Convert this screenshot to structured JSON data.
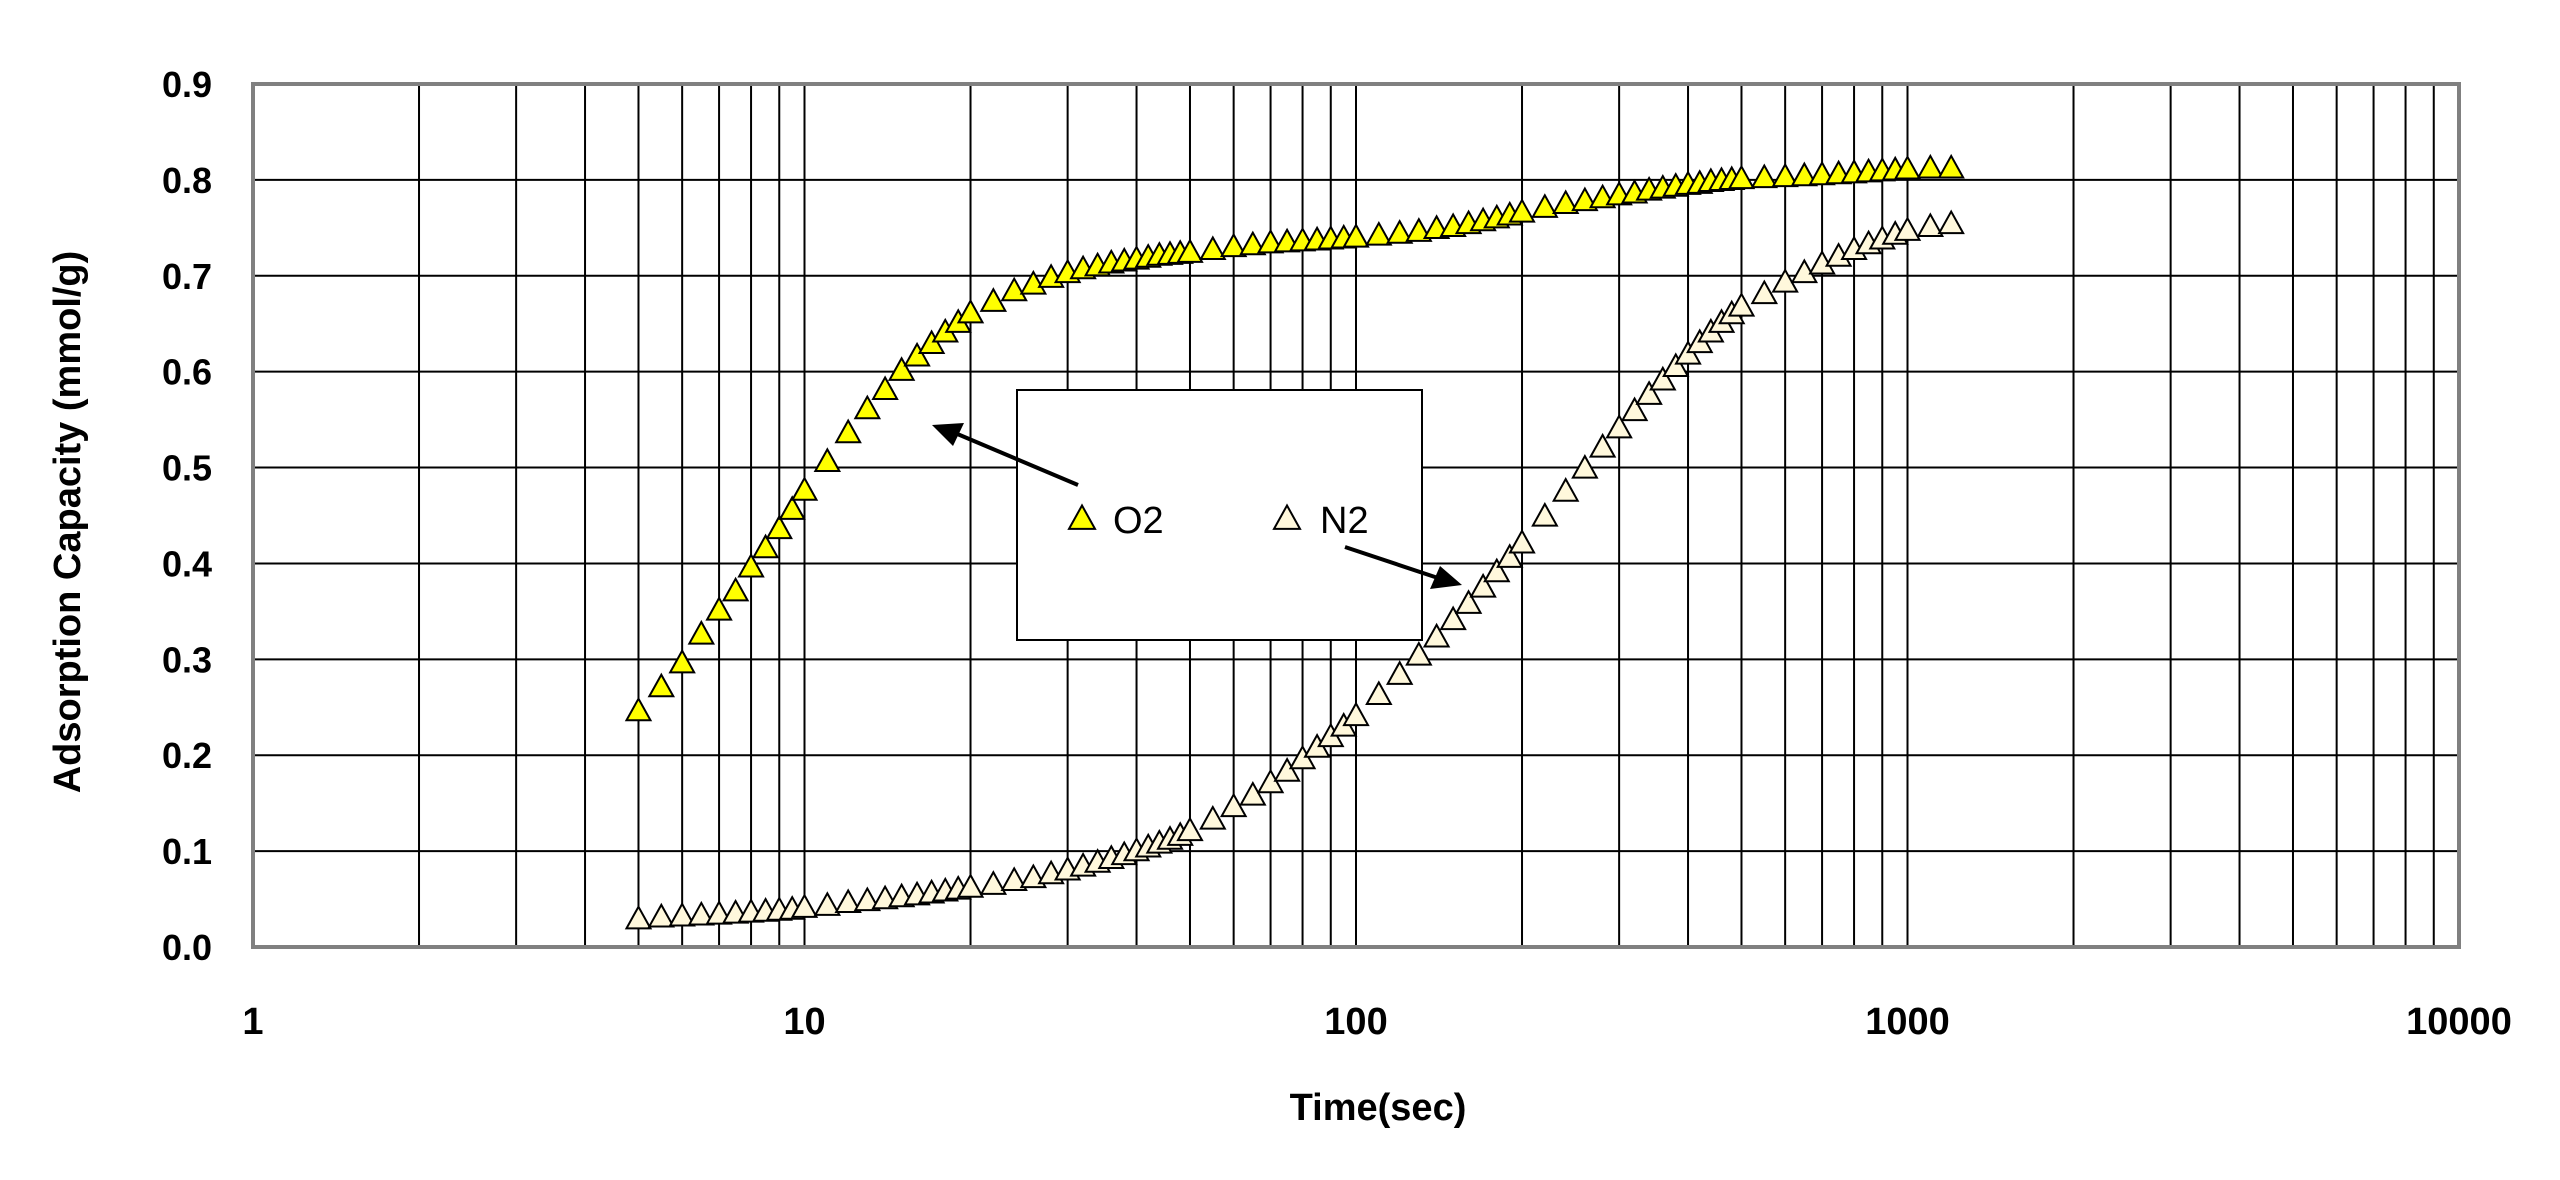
{
  "chart_data": {
    "type": "scatter",
    "title": "",
    "xlabel": "Time(sec)",
    "ylabel": "Adsorption Capacity (mmol/g)",
    "xscale": "log",
    "xlim": [
      1,
      10000
    ],
    "ylim": [
      0,
      0.9
    ],
    "grid": true,
    "x_tick_labels": [
      "1",
      "10",
      "100",
      "1000",
      "10000"
    ],
    "y_tick_labels": [
      "0.0",
      "0.1",
      "0.2",
      "0.3",
      "0.4",
      "0.5",
      "0.6",
      "0.7",
      "0.8",
      "0.9"
    ],
    "legend_position": "center",
    "series": [
      {
        "name": "O2",
        "marker": "triangle",
        "color": "#ffff00",
        "x": [
          5,
          5.5,
          6,
          6.5,
          7,
          7.5,
          8,
          8.5,
          9,
          9.5,
          10,
          11,
          12,
          13,
          14,
          15,
          16,
          17,
          18,
          19,
          20,
          22,
          24,
          26,
          28,
          30,
          32,
          34,
          36,
          38,
          40,
          42,
          44,
          46,
          48,
          50,
          55,
          60,
          65,
          70,
          75,
          80,
          85,
          90,
          95,
          100,
          110,
          120,
          130,
          140,
          150,
          160,
          170,
          180,
          190,
          200,
          220,
          240,
          260,
          280,
          300,
          320,
          340,
          360,
          380,
          400,
          420,
          440,
          460,
          480,
          500,
          550,
          600,
          650,
          700,
          750,
          800,
          850,
          900,
          950,
          1000,
          1100,
          1200
        ],
        "y": [
          0.245,
          0.27,
          0.295,
          0.325,
          0.35,
          0.37,
          0.395,
          0.415,
          0.435,
          0.455,
          0.475,
          0.505,
          0.535,
          0.56,
          0.58,
          0.6,
          0.615,
          0.628,
          0.64,
          0.65,
          0.66,
          0.672,
          0.683,
          0.69,
          0.697,
          0.702,
          0.706,
          0.709,
          0.712,
          0.714,
          0.716,
          0.718,
          0.72,
          0.721,
          0.722,
          0.723,
          0.726,
          0.729,
          0.731,
          0.733,
          0.734,
          0.735,
          0.736,
          0.737,
          0.738,
          0.739,
          0.741,
          0.743,
          0.745,
          0.748,
          0.75,
          0.753,
          0.756,
          0.759,
          0.762,
          0.765,
          0.77,
          0.774,
          0.777,
          0.78,
          0.783,
          0.785,
          0.788,
          0.79,
          0.792,
          0.794,
          0.795,
          0.797,
          0.798,
          0.799,
          0.8,
          0.801,
          0.802,
          0.803,
          0.804,
          0.805,
          0.806,
          0.807,
          0.808,
          0.809,
          0.81,
          0.811,
          0.811
        ]
      },
      {
        "name": "N2",
        "marker": "triangle",
        "color": "#fff8dc",
        "x": [
          5,
          5.5,
          6,
          6.5,
          7,
          7.5,
          8,
          8.5,
          9,
          9.5,
          10,
          11,
          12,
          13,
          14,
          15,
          16,
          17,
          18,
          19,
          20,
          22,
          24,
          26,
          28,
          30,
          32,
          34,
          36,
          38,
          40,
          42,
          44,
          46,
          48,
          50,
          55,
          60,
          65,
          70,
          75,
          80,
          85,
          90,
          95,
          100,
          110,
          120,
          130,
          140,
          150,
          160,
          170,
          180,
          190,
          200,
          220,
          240,
          260,
          280,
          300,
          320,
          340,
          360,
          380,
          400,
          420,
          440,
          460,
          480,
          500,
          550,
          600,
          650,
          700,
          750,
          800,
          850,
          900,
          950,
          1000,
          1100,
          1200
        ],
        "y": [
          0.028,
          0.03,
          0.031,
          0.032,
          0.033,
          0.034,
          0.035,
          0.036,
          0.037,
          0.038,
          0.04,
          0.042,
          0.045,
          0.047,
          0.049,
          0.051,
          0.053,
          0.055,
          0.057,
          0.059,
          0.061,
          0.064,
          0.068,
          0.071,
          0.075,
          0.079,
          0.083,
          0.087,
          0.091,
          0.095,
          0.099,
          0.103,
          0.107,
          0.111,
          0.115,
          0.12,
          0.132,
          0.145,
          0.157,
          0.17,
          0.182,
          0.195,
          0.207,
          0.218,
          0.229,
          0.24,
          0.262,
          0.283,
          0.303,
          0.322,
          0.34,
          0.357,
          0.374,
          0.39,
          0.405,
          0.42,
          0.448,
          0.474,
          0.498,
          0.52,
          0.54,
          0.558,
          0.575,
          0.59,
          0.604,
          0.617,
          0.629,
          0.64,
          0.65,
          0.659,
          0.667,
          0.68,
          0.692,
          0.702,
          0.711,
          0.719,
          0.726,
          0.732,
          0.737,
          0.742,
          0.746,
          0.75,
          0.753
        ]
      }
    ]
  }
}
